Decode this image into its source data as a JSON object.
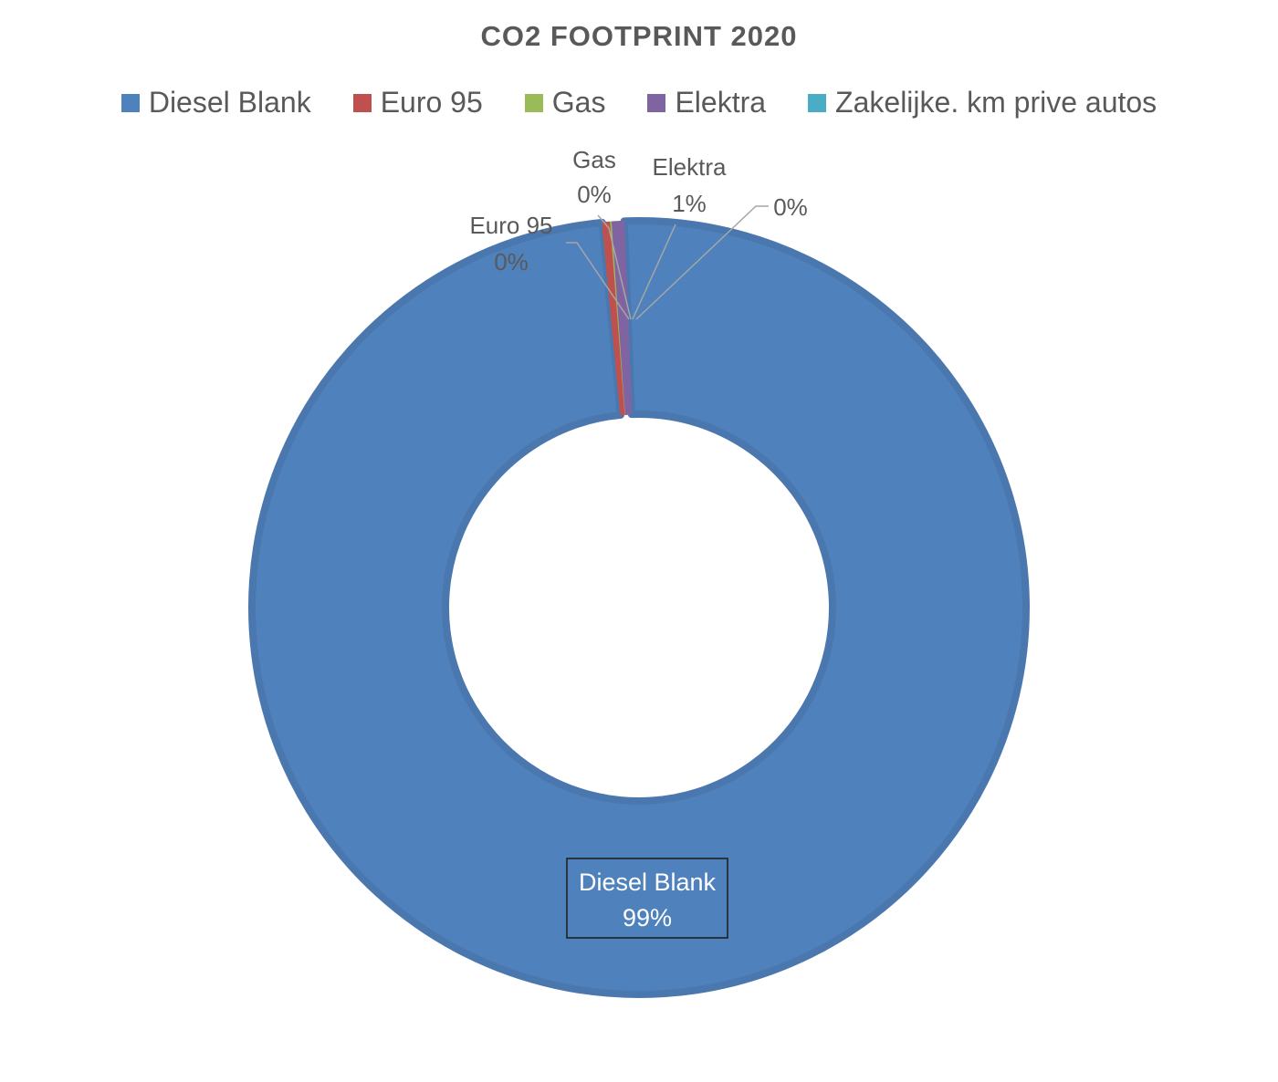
{
  "chart_data": {
    "type": "pie",
    "title": "CO2 FOOTPRINT 2020",
    "categories": [
      "Diesel Blank",
      "Euro 95",
      "Gas",
      "Elektra",
      "Zakelijke. km prive autos"
    ],
    "values": [
      99.1,
      0.3,
      0.1,
      0.5,
      0.0
    ],
    "data_labels": [
      {
        "category": "Diesel Blank",
        "text": "99%"
      },
      {
        "category": "Euro 95",
        "text": "0%"
      },
      {
        "category": "Gas",
        "text": "0%"
      },
      {
        "category": "Elektra",
        "text": "1%"
      },
      {
        "category": "Zakelijke. km prive autos",
        "text": "0%"
      }
    ],
    "colors": [
      "#4F81BD",
      "#C0504D",
      "#9BBB59",
      "#8064A2",
      "#4BACC6"
    ],
    "hole": true,
    "legend_position": "top"
  },
  "legend": [
    {
      "label": "Diesel Blank",
      "color": "#4F81BD"
    },
    {
      "label": "Euro 95",
      "color": "#C0504D"
    },
    {
      "label": "Gas",
      "color": "#9BBB59"
    },
    {
      "label": "Elektra",
      "color": "#8064A2"
    },
    {
      "label": "Zakelijke. km prive autos",
      "color": "#4BACC6"
    }
  ]
}
